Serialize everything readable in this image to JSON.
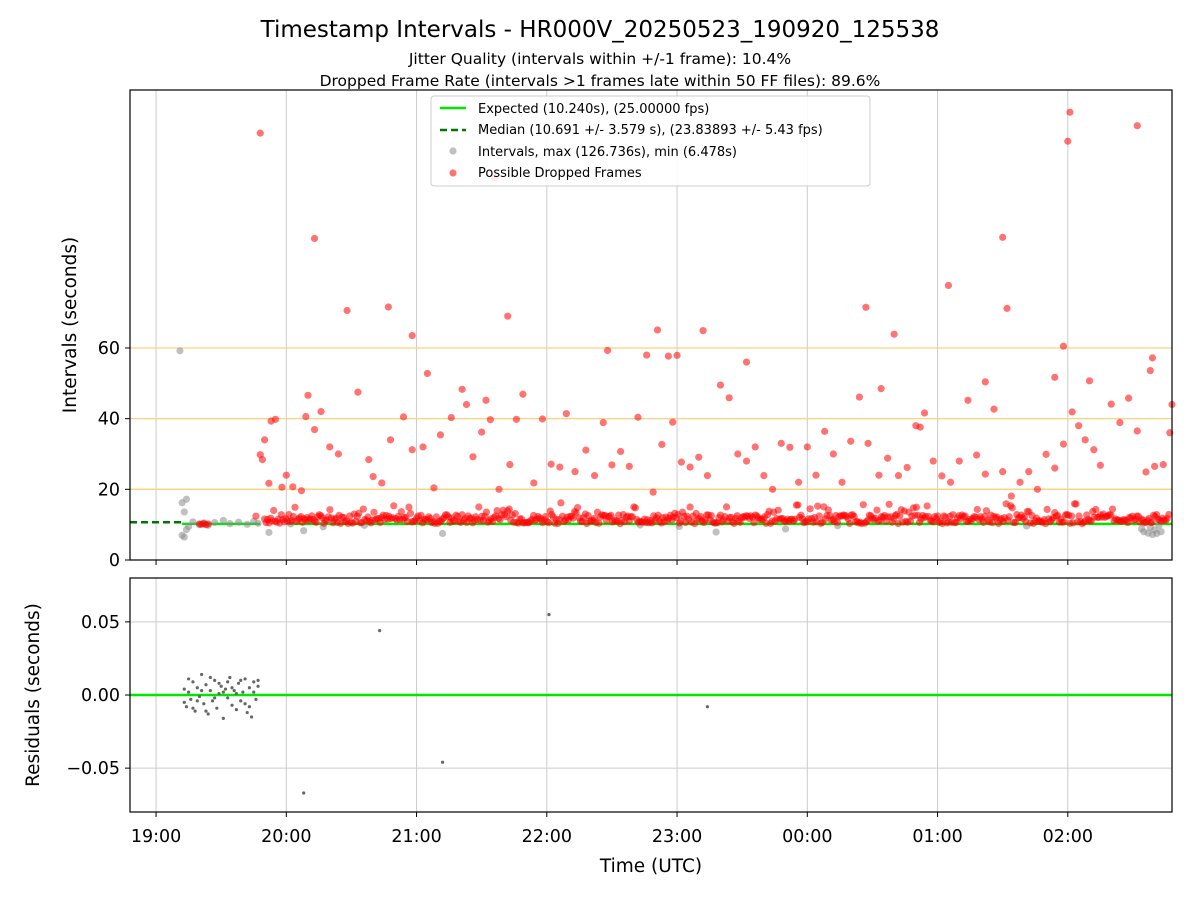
{
  "title": "Timestamp Intervals - HR000V_20250523_190920_125538",
  "subtitle_1": "Jitter Quality (intervals within +/-1 frame): 10.4%",
  "subtitle_2": "Dropped Frame Rate (intervals >1 frames late within 50 FF files): 89.6%",
  "colors": {
    "expected": "#00e600",
    "median": "#007700",
    "intervals": "#8c8c8c",
    "dropped": "#ff0000",
    "reference_lines": "#ffd27a",
    "grid": "#cccccc"
  },
  "chart_data": [
    {
      "type": "scatter",
      "panel": "top",
      "ylabel": "Intervals (seconds)",
      "xlim": [
        "18:48",
        "02:48"
      ],
      "ylim": [
        0,
        133
      ],
      "y_ticks": [
        "0",
        "20",
        "40",
        "60"
      ],
      "x_ticks": [
        "19:00",
        "20:00",
        "21:00",
        "22:00",
        "23:00",
        "00:00",
        "01:00",
        "02:00"
      ],
      "grid": true,
      "legend_position": "top-center",
      "legend": [
        "Expected (10.240s), (25.00000 fps)",
        "Median (10.691 +/- 3.579 s), (23.83893 +/- 5.43 fps)",
        "Intervals, max (126.736s), min (6.478s)",
        "Possible Dropped Frames"
      ],
      "reference_lines": [
        20,
        40,
        60
      ],
      "expected_line": {
        "value": 10.24,
        "segments": [
          [
            "19:12",
            "19:48"
          ],
          [
            "20:00",
            "02:48"
          ]
        ]
      },
      "median_line": {
        "value": 10.691,
        "span": [
          "18:48",
          "19:12"
        ]
      },
      "series": [
        {
          "name": "Intervals, max (126.736s), min (6.478s)",
          "points": [
            [
              "19:11",
              59.2
            ],
            [
              "19:12",
              16.2
            ],
            [
              "19:13",
              13.6
            ],
            [
              "19:14",
              17.2
            ],
            [
              "19:12",
              7.0
            ],
            [
              "19:13",
              6.5
            ],
            [
              "19:14",
              8.6
            ],
            [
              "19:15",
              9.5
            ],
            [
              "19:17",
              10.8
            ],
            [
              "19:20",
              10.0
            ],
            [
              "19:22",
              10.5
            ],
            [
              "19:24",
              9.8
            ],
            [
              "19:27",
              10.6
            ],
            [
              "19:31",
              11.2
            ],
            [
              "19:34",
              10.3
            ],
            [
              "19:38",
              10.7
            ],
            [
              "19:42",
              10.1
            ],
            [
              "19:45",
              10.9
            ],
            [
              "19:47",
              10.4
            ],
            [
              "19:52",
              7.8
            ],
            [
              "20:02",
              10.2
            ],
            [
              "20:08",
              8.3
            ],
            [
              "20:17",
              9.4
            ],
            [
              "20:36",
              9.8
            ],
            [
              "21:12",
              7.5
            ],
            [
              "22:43",
              9.9
            ],
            [
              "23:01",
              9.5
            ],
            [
              "23:18",
              7.9
            ],
            [
              "23:50",
              8.8
            ],
            [
              "00:14",
              9.7
            ],
            [
              "01:41",
              9.6
            ],
            [
              "02:34",
              8.8
            ],
            [
              "02:35",
              8.0
            ],
            [
              "02:37",
              7.6
            ],
            [
              "02:38",
              9.2
            ],
            [
              "02:39",
              7.2
            ],
            [
              "02:40",
              8.5
            ],
            [
              "02:41",
              7.5
            ],
            [
              "02:42",
              9.8
            ],
            [
              "02:43",
              8.0
            ]
          ]
        },
        {
          "name": "Possible Dropped Frames",
          "points": [
            [
              "19:20",
              10.2
            ],
            [
              "19:21",
              10.1
            ],
            [
              "19:22",
              10.3
            ],
            [
              "19:23",
              10.0
            ],
            [
              "19:24",
              10.2
            ],
            [
              "19:46",
              12.4
            ],
            [
              "19:48",
              29.8
            ],
            [
              "19:49",
              28.4
            ],
            [
              "19:50",
              34.0
            ],
            [
              "19:52",
              21.7
            ],
            [
              "19:53",
              39.3
            ],
            [
              "19:55",
              39.8
            ],
            [
              "19:58",
              20.6
            ],
            [
              "20:00",
              24.0
            ],
            [
              "20:03",
              20.7
            ],
            [
              "20:07",
              19.6
            ],
            [
              "20:09",
              40.6
            ],
            [
              "20:10",
              46.6
            ],
            [
              "20:13",
              36.9
            ],
            [
              "20:16",
              42.0
            ],
            [
              "20:20",
              32.0
            ],
            [
              "20:24",
              30.0
            ],
            [
              "20:28",
              70.6
            ],
            [
              "20:33",
              47.5
            ],
            [
              "20:40",
              23.6
            ],
            [
              "20:44",
              21.8
            ],
            [
              "20:48",
              34.0
            ],
            [
              "20:54",
              40.5
            ],
            [
              "20:58",
              31.2
            ],
            [
              "21:03",
              32.0
            ],
            [
              "21:05",
              52.8
            ],
            [
              "21:08",
              20.4
            ],
            [
              "21:11",
              35.4
            ],
            [
              "21:16",
              40.3
            ],
            [
              "21:21",
              48.3
            ],
            [
              "21:23",
              44.0
            ],
            [
              "21:26",
              29.2
            ],
            [
              "21:30",
              36.2
            ],
            [
              "21:34",
              39.7
            ],
            [
              "21:38",
              20.0
            ],
            [
              "21:43",
              27.0
            ],
            [
              "21:46",
              39.8
            ],
            [
              "21:49",
              46.9
            ],
            [
              "21:54",
              21.8
            ],
            [
              "21:58",
              39.9
            ],
            [
              "22:02",
              27.1
            ],
            [
              "22:06",
              26.3
            ],
            [
              "22:09",
              41.4
            ],
            [
              "22:13",
              25.0
            ],
            [
              "22:18",
              31.1
            ],
            [
              "22:22",
              23.9
            ],
            [
              "22:26",
              38.9
            ],
            [
              "22:30",
              26.9
            ],
            [
              "22:34",
              30.7
            ],
            [
              "22:38",
              26.5
            ],
            [
              "22:42",
              40.4
            ],
            [
              "22:46",
              58.0
            ],
            [
              "22:49",
              19.2
            ],
            [
              "22:53",
              32.7
            ],
            [
              "22:58",
              39.0
            ],
            [
              "23:02",
              27.7
            ],
            [
              "23:06",
              26.3
            ],
            [
              "23:10",
              29.1
            ],
            [
              "23:14",
              23.9
            ],
            [
              "23:20",
              49.5
            ],
            [
              "23:24",
              45.9
            ],
            [
              "23:28",
              30.0
            ],
            [
              "23:32",
              28.0
            ],
            [
              "23:36",
              32.0
            ],
            [
              "23:40",
              23.9
            ],
            [
              "23:44",
              20.0
            ],
            [
              "23:48",
              33.0
            ],
            [
              "23:52",
              31.9
            ],
            [
              "23:56",
              22.0
            ],
            [
              "00:00",
              32.0
            ],
            [
              "00:04",
              24.0
            ],
            [
              "00:08",
              36.4
            ],
            [
              "00:12",
              30.0
            ],
            [
              "00:16",
              22.0
            ],
            [
              "00:20",
              33.6
            ],
            [
              "00:24",
              46.1
            ],
            [
              "00:28",
              33.0
            ],
            [
              "00:33",
              24.0
            ],
            [
              "00:37",
              28.8
            ],
            [
              "00:42",
              23.9
            ],
            [
              "00:46",
              26.2
            ],
            [
              "00:50",
              38.0
            ],
            [
              "00:54",
              41.6
            ],
            [
              "00:58",
              28.0
            ],
            [
              "01:02",
              23.8
            ],
            [
              "01:06",
              22.0
            ],
            [
              "01:10",
              28.0
            ],
            [
              "01:14",
              45.2
            ],
            [
              "01:18",
              29.7
            ],
            [
              "01:22",
              24.3
            ],
            [
              "01:26",
              42.7
            ],
            [
              "01:30",
              25.0
            ],
            [
              "01:34",
              18.1
            ],
            [
              "01:38",
              22.0
            ],
            [
              "01:42",
              25.0
            ],
            [
              "01:46",
              20.0
            ],
            [
              "01:50",
              29.9
            ],
            [
              "01:54",
              26.0
            ],
            [
              "01:58",
              32.8
            ],
            [
              "02:02",
              41.9
            ],
            [
              "02:05",
              38.0
            ],
            [
              "02:08",
              34.0
            ],
            [
              "02:12",
              31.2
            ],
            [
              "02:15",
              26.8
            ],
            [
              "02:20",
              44.1
            ],
            [
              "02:24",
              38.9
            ],
            [
              "02:28",
              45.8
            ],
            [
              "02:32",
              36.5
            ],
            [
              "02:36",
              24.9
            ],
            [
              "02:40",
              26.5
            ],
            [
              "02:44",
              27.0
            ],
            [
              "02:47",
              36.0
            ],
            [
              "02:48",
              44.0
            ],
            [
              "19:48",
              120.8
            ],
            [
              "20:13",
              91.0
            ],
            [
              "20:47",
              71.6
            ],
            [
              "20:58",
              63.5
            ],
            [
              "21:36",
              108.2
            ],
            [
              "21:42",
              69.0
            ],
            [
              "22:28",
              59.3
            ],
            [
              "22:51",
              65.1
            ],
            [
              "22:56",
              57.7
            ],
            [
              "23:00",
              57.9
            ],
            [
              "23:12",
              64.9
            ],
            [
              "23:32",
              56.0
            ],
            [
              "00:27",
              71.5
            ],
            [
              "00:40",
              63.9
            ],
            [
              "01:05",
              77.7
            ],
            [
              "01:30",
              91.3
            ],
            [
              "01:32",
              71.2
            ],
            [
              "01:58",
              60.5
            ],
            [
              "02:00",
              118.5
            ],
            [
              "02:01",
              126.7
            ],
            [
              "02:32",
              122.9
            ],
            [
              "02:38",
              53.6
            ],
            [
              "02:39",
              57.2
            ],
            [
              "01:22",
              50.4
            ],
            [
              "00:34",
              48.5
            ],
            [
              "00:52",
              37.6
            ],
            [
              "21:32",
              45.2
            ],
            [
              "20:38",
              28.4
            ],
            [
              "01:54",
              51.7
            ],
            [
              "02:10",
              50.7
            ]
          ]
        }
      ]
    },
    {
      "type": "scatter",
      "panel": "bottom",
      "xlabel": "Time (UTC)",
      "ylabel": "Residuals (seconds)",
      "xlim": [
        "18:48",
        "02:48"
      ],
      "ylim": [
        -0.08,
        0.08
      ],
      "y_ticks": [
        "−0.05",
        "0.00",
        "0.05"
      ],
      "x_ticks": [
        "19:00",
        "20:00",
        "21:00",
        "22:00",
        "23:00",
        "00:00",
        "01:00",
        "02:00"
      ],
      "grid": true,
      "zero_line": 0,
      "series": [
        {
          "name": "Residuals",
          "points": [
            [
              "19:13",
              0.004
            ],
            [
              "19:14",
              -0.008
            ],
            [
              "19:15",
              0.002
            ],
            [
              "19:16",
              -0.003
            ],
            [
              "19:17",
              0.009
            ],
            [
              "19:18",
              -0.011
            ],
            [
              "19:19",
              0.005
            ],
            [
              "19:20",
              -0.001
            ],
            [
              "19:21",
              0.014
            ],
            [
              "19:22",
              -0.006
            ],
            [
              "19:23",
              0.007
            ],
            [
              "19:24",
              -0.013
            ],
            [
              "19:25",
              0.003
            ],
            [
              "19:26",
              -0.004
            ],
            [
              "19:27",
              0.01
            ],
            [
              "19:28",
              -0.009
            ],
            [
              "19:29",
              0.001
            ],
            [
              "19:30",
              0.006
            ],
            [
              "19:31",
              -0.016
            ],
            [
              "19:32",
              0.004
            ],
            [
              "19:33",
              -0.002
            ],
            [
              "19:34",
              0.012
            ],
            [
              "19:35",
              -0.007
            ],
            [
              "19:36",
              0.003
            ],
            [
              "19:37",
              -0.01
            ],
            [
              "19:38",
              0.008
            ],
            [
              "19:39",
              -0.004
            ],
            [
              "19:40",
              0.002
            ],
            [
              "19:41",
              0.011
            ],
            [
              "19:42",
              -0.012
            ],
            [
              "19:43",
              0.005
            ],
            [
              "19:44",
              -0.015
            ],
            [
              "19:45",
              0.009
            ],
            [
              "19:46",
              -0.003
            ],
            [
              "19:47",
              0.006
            ],
            [
              "19:13",
              -0.005
            ],
            [
              "19:15",
              0.011
            ],
            [
              "19:17",
              -0.009
            ],
            [
              "19:19",
              -0.004
            ],
            [
              "19:21",
              0.003
            ],
            [
              "19:23",
              -0.011
            ],
            [
              "19:25",
              0.012
            ],
            [
              "19:27",
              -0.002
            ],
            [
              "19:29",
              0.008
            ],
            [
              "19:31",
              0.002
            ],
            [
              "19:33",
              0.009
            ],
            [
              "19:35",
              0.005
            ],
            [
              "19:37",
              0.001
            ],
            [
              "19:39",
              0.01
            ],
            [
              "19:41",
              -0.006
            ],
            [
              "19:43",
              -0.008
            ],
            [
              "19:45",
              0.002
            ],
            [
              "19:47",
              0.01
            ],
            [
              "20:08",
              -0.067
            ],
            [
              "20:43",
              0.044
            ],
            [
              "21:12",
              -0.046
            ],
            [
              "22:01",
              0.055
            ],
            [
              "23:14",
              -0.008
            ]
          ]
        }
      ]
    }
  ]
}
